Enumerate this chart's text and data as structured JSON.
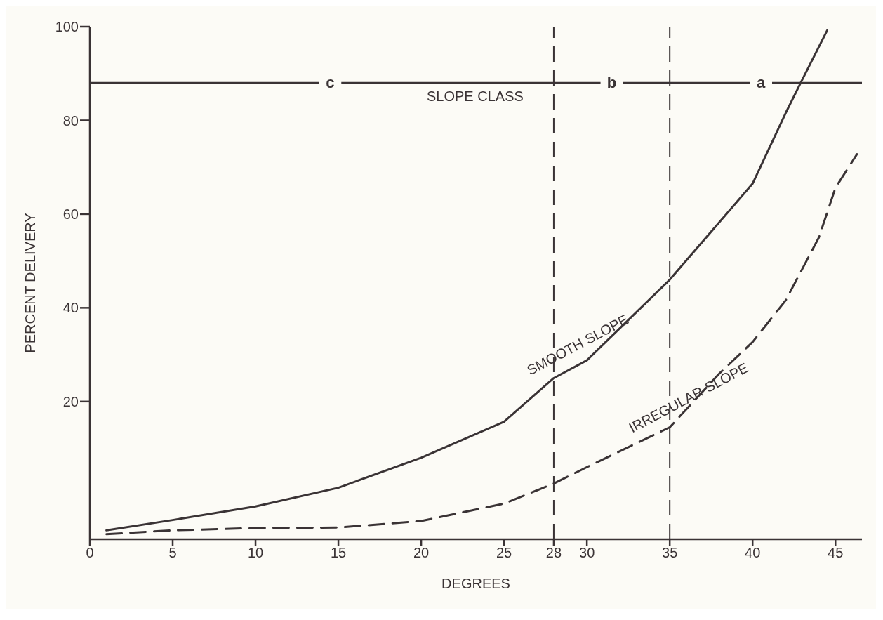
{
  "chart_data": {
    "type": "line",
    "xlabel": "DEGREES",
    "ylabel": "PERCENT DELIVERY",
    "xlim": [
      0,
      46.6
    ],
    "xticks": [
      0,
      5,
      10,
      15,
      20,
      25,
      28,
      30,
      35,
      40,
      45
    ],
    "ylim": [
      -9.4,
      100
    ],
    "yticks": [
      20,
      40,
      60,
      80,
      100
    ],
    "series": [
      {
        "name": "SMOOTH SLOPE",
        "color": "#3a3335",
        "line_style": "solid",
        "x": [
          1,
          5,
          10,
          15,
          20,
          25,
          28,
          30,
          35,
          40,
          42,
          43,
          44.5
        ],
        "values": [
          -7.5,
          -5.3,
          -2.4,
          1.6,
          8,
          15.7,
          25,
          28.8,
          46,
          66.5,
          81.6,
          88.7,
          99.2
        ]
      },
      {
        "name": "IRREGULAR SLOPE",
        "color": "#3a3335",
        "line_style": "dashed",
        "x": [
          1,
          5,
          10,
          15,
          20,
          25,
          28,
          30,
          35,
          38,
          40,
          42,
          44,
          45,
          46.3
        ],
        "values": [
          -8.3,
          -7.5,
          -7,
          -6.9,
          -5.5,
          -1.8,
          2.5,
          6,
          14.5,
          26,
          32.7,
          41.6,
          55,
          65.6,
          72.8
        ]
      }
    ],
    "ref_lines": [
      {
        "axis": "x",
        "value": 28,
        "line_style": "dashed"
      },
      {
        "axis": "x",
        "value": 35,
        "line_style": "dashed"
      },
      {
        "axis": "y",
        "value": 88,
        "line_style": "solid"
      }
    ],
    "annotations": [
      {
        "text": "c",
        "x": 14.5,
        "y": 88
      },
      {
        "text": "b",
        "x": 31.5,
        "y": 88
      },
      {
        "text": "a",
        "x": 40.5,
        "y": 88
      },
      "SLOPE CLASS"
    ],
    "grid": false,
    "legend": false,
    "marker": "none"
  }
}
